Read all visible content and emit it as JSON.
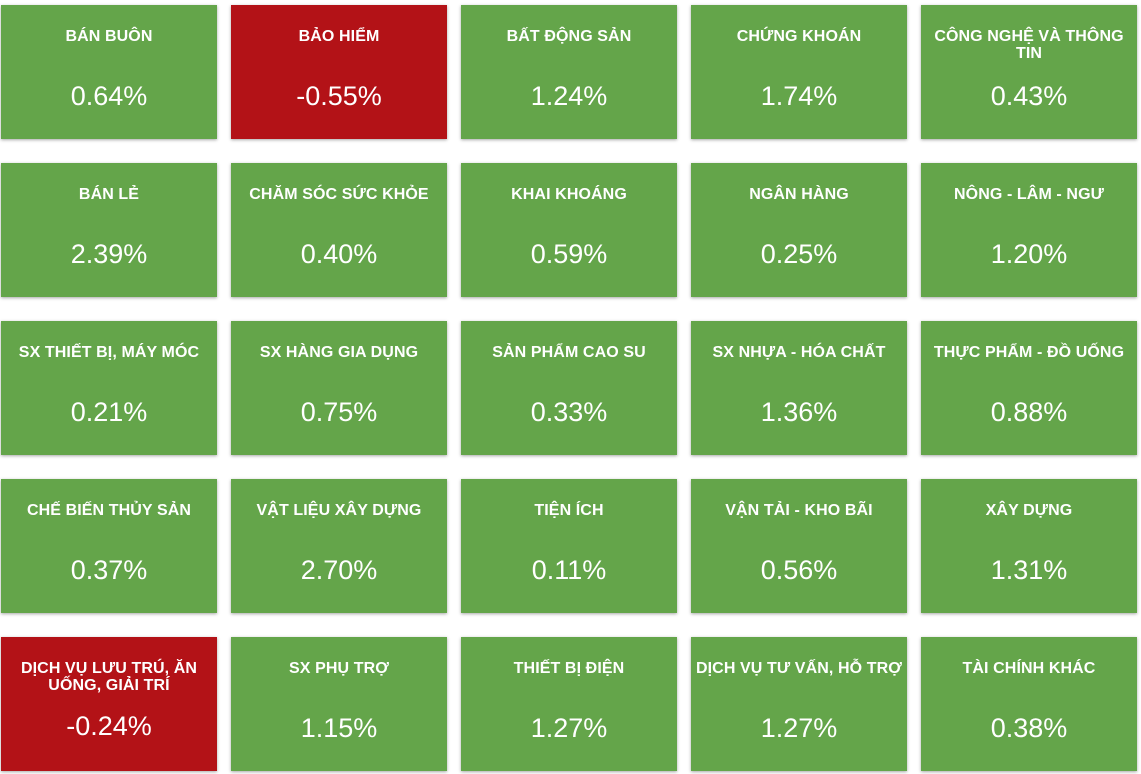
{
  "colors": {
    "up": "#64a54a",
    "down": "#b31217"
  },
  "tiles": [
    {
      "name": "BÁN BUÔN",
      "value": "0.64%",
      "status": "up"
    },
    {
      "name": "BẢO HIỂM",
      "value": "-0.55%",
      "status": "down"
    },
    {
      "name": "BẤT ĐỘNG SẢN",
      "value": "1.24%",
      "status": "up"
    },
    {
      "name": "CHỨNG KHOÁN",
      "value": "1.74%",
      "status": "up"
    },
    {
      "name": "CÔNG NGHỆ VÀ THÔNG TIN",
      "value": "0.43%",
      "status": "up"
    },
    {
      "name": "BÁN LẺ",
      "value": "2.39%",
      "status": "up"
    },
    {
      "name": "CHĂM SÓC SỨC KHỎE",
      "value": "0.40%",
      "status": "up"
    },
    {
      "name": "KHAI KHOÁNG",
      "value": "0.59%",
      "status": "up"
    },
    {
      "name": "NGÂN HÀNG",
      "value": "0.25%",
      "status": "up"
    },
    {
      "name": "NÔNG - LÂM - NGƯ",
      "value": "1.20%",
      "status": "up"
    },
    {
      "name": "SX THIẾT BỊ, MÁY MÓC",
      "value": "0.21%",
      "status": "up"
    },
    {
      "name": "SX HÀNG GIA DỤNG",
      "value": "0.75%",
      "status": "up"
    },
    {
      "name": "SẢN PHẨM CAO SU",
      "value": "0.33%",
      "status": "up"
    },
    {
      "name": "SX NHỰA - HÓA CHẤT",
      "value": "1.36%",
      "status": "up"
    },
    {
      "name": "THỰC PHẨM - ĐỒ UỐNG",
      "value": "0.88%",
      "status": "up"
    },
    {
      "name": "CHẾ BIẾN THỦY SẢN",
      "value": "0.37%",
      "status": "up"
    },
    {
      "name": "VẬT LIỆU XÂY DỰNG",
      "value": "2.70%",
      "status": "up"
    },
    {
      "name": "TIỆN ÍCH",
      "value": "0.11%",
      "status": "up"
    },
    {
      "name": "VẬN TẢI - KHO BÃI",
      "value": "0.56%",
      "status": "up"
    },
    {
      "name": "XÂY DỰNG",
      "value": "1.31%",
      "status": "up"
    },
    {
      "name": "DỊCH VỤ LƯU TRÚ, ĂN UỐNG, GIẢI TRÍ",
      "value": "-0.24%",
      "status": "down"
    },
    {
      "name": "SX PHỤ TRỢ",
      "value": "1.15%",
      "status": "up"
    },
    {
      "name": "THIẾT BỊ ĐIỆN",
      "value": "1.27%",
      "status": "up"
    },
    {
      "name": "DỊCH VỤ TƯ VẤN, HỖ TRỢ",
      "value": "1.27%",
      "status": "up"
    },
    {
      "name": "TÀI CHÍNH KHÁC",
      "value": "0.38%",
      "status": "up"
    }
  ]
}
